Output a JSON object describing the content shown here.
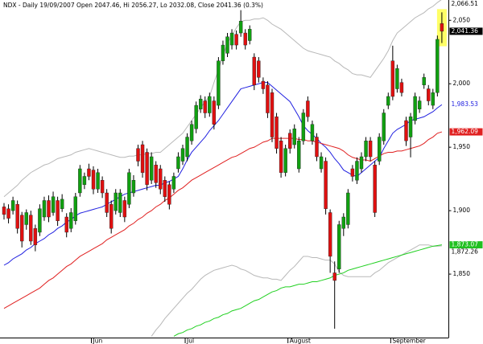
{
  "chart_data": {
    "type": "candlestick",
    "title": "NDX - Daily 19/09/2007 Open 2047.46, Hi 2056.27, Lo 2032.08, Close 2041.36 (0.3%)",
    "categories": [
      null,
      null,
      null,
      null,
      null,
      null,
      null,
      null,
      null,
      null,
      null,
      null,
      null,
      null,
      null,
      null,
      null,
      null,
      null,
      null,
      "Jun",
      null,
      null,
      null,
      null,
      null,
      null,
      null,
      null,
      null,
      null,
      null,
      null,
      null,
      null,
      null,
      null,
      null,
      null,
      null,
      null,
      "Jul",
      null,
      null,
      null,
      null,
      null,
      null,
      null,
      null,
      null,
      null,
      null,
      null,
      null,
      null,
      null,
      null,
      null,
      null,
      null,
      null,
      null,
      null,
      "August",
      null,
      null,
      null,
      null,
      null,
      null,
      null,
      null,
      null,
      null,
      null,
      null,
      null,
      null,
      null,
      null,
      null,
      null,
      null,
      null,
      null,
      null,
      "September",
      null,
      null,
      null,
      null,
      null,
      null,
      null,
      null,
      null,
      null,
      null
    ],
    "open": [
      1903,
      1901.5,
      1900,
      1905,
      1896.5,
      1889,
      1896.5,
      1886,
      1883,
      1895,
      1908,
      1898.5,
      1908,
      1901.5,
      1895,
      1886,
      1892,
      1914,
      1920.5,
      1933,
      1932,
      1917,
      1924,
      1914,
      1905,
      1900,
      1898.5,
      1908,
      1905,
      1914,
      1949,
      1952,
      1946,
      1924,
      1936,
      1933,
      1924,
      1920.5,
      1917,
      1933,
      1939,
      1942.5,
      1955,
      1964.5,
      1980,
      1986.5,
      1977,
      1986.5,
      1983,
      2018,
      2024,
      2030.5,
      2039,
      2040,
      2040,
      2034,
      2021,
      2018,
      2002,
      1999,
      1993,
      1974,
      1955,
      1930,
      1961,
      1952,
      1933,
      1955,
      1986.5,
      1955,
      1958,
      1933,
      1939,
      1898.5,
      1851,
      1854,
      1886,
      1889,
      1933,
      1924,
      1933,
      1942.5,
      1955,
      1936,
      1939,
      1955,
      1983,
      2018,
      1996,
      2001,
      1971,
      1958,
      1971,
      1980,
      1999,
      1996,
      1983,
      1993,
      2047.46
    ],
    "high": [
      1906,
      1905,
      1911,
      1908,
      1899,
      1901,
      1900,
      1889,
      1905,
      1911,
      1912,
      1915,
      1911,
      1913,
      1898,
      1902,
      1914,
      1936,
      1930,
      1937,
      1935,
      1933,
      1927,
      1917,
      1908,
      1917,
      1917,
      1911,
      1933,
      1928,
      1952,
      1955,
      1949,
      1946,
      1939,
      1936,
      1927,
      1923,
      1930,
      1946,
      1952,
      1961,
      1971,
      1986,
      1991,
      1990,
      1993,
      1990,
      2021,
      2034,
      2040,
      2043,
      2042,
      2058,
      2043,
      2046,
      2024,
      2021,
      2005,
      2002,
      1996,
      1977,
      1958,
      1952,
      1964,
      1968,
      1958,
      1980,
      1990,
      1971,
      1961,
      1946,
      1942,
      1901,
      1860,
      1892,
      1898,
      1917,
      1936,
      1942,
      1946,
      1958,
      1958,
      1939,
      1961,
      1980,
      1993,
      2030,
      2015,
      2004,
      1974,
      1977,
      1993,
      1990,
      2008,
      1999,
      1996,
      2038,
      2056.27
    ],
    "low": [
      1893,
      1890,
      1897,
      1882,
      1871,
      1885,
      1873,
      1868,
      1880,
      1892,
      1891,
      1896,
      1888,
      1899,
      1879,
      1883,
      1889,
      1911,
      1917,
      1924,
      1913,
      1914,
      1910,
      1895,
      1882,
      1897,
      1895,
      1891,
      1902,
      1911,
      1935,
      1926,
      1916,
      1921,
      1918,
      1913,
      1907,
      1901,
      1914,
      1930,
      1936,
      1939,
      1952,
      1961,
      1977,
      1973,
      1974,
      1964,
      1980,
      2015,
      2021,
      2027,
      2027,
      2037,
      2027,
      2031,
      1995,
      2001,
      1992,
      1973,
      1954,
      1945,
      1926,
      1927,
      1945,
      1949,
      1930,
      1952,
      1970,
      1952,
      1939,
      1930,
      1897,
      1851,
      1807,
      1851,
      1880,
      1886,
      1923,
      1921,
      1930,
      1939,
      1939,
      1895,
      1936,
      1952,
      1980,
      1987,
      1993,
      1990,
      1951,
      1942,
      1968,
      1977,
      1996,
      1983,
      1980,
      1990,
      2032.08
    ],
    "close": [
      1897,
      1894,
      1908,
      1886,
      1876,
      1898.5,
      1876,
      1873,
      1901.5,
      1908,
      1895,
      1911,
      1892,
      1909,
      1883,
      1898.5,
      1911,
      1933,
      1927,
      1927,
      1917,
      1930,
      1914,
      1898.5,
      1886,
      1914,
      1914,
      1895,
      1930,
      1924,
      1939,
      1930,
      1920.5,
      1942.5,
      1922,
      1917,
      1911,
      1905,
      1927,
      1942.5,
      1949,
      1958,
      1968,
      1983,
      1988,
      1977,
      1990,
      1968,
      2018,
      2030.5,
      2037,
      2040,
      2030.5,
      2049.4,
      2030.5,
      2043,
      1999,
      2005,
      1996,
      1977,
      1958,
      1949,
      1930,
      1949,
      1949,
      1964.5,
      1955,
      1977,
      1974,
      1968,
      1942.5,
      1942.5,
      1901.5,
      1864,
      1845,
      1889,
      1895,
      1914,
      1927,
      1939,
      1942.5,
      1955,
      1942.5,
      1898.5,
      1958,
      1977,
      1990,
      1990,
      2012,
      1993,
      1955,
      1974,
      1990,
      1986.5,
      2005,
      1986.5,
      1993,
      2035,
      2041.36
    ],
    "up_color": "#10a010",
    "down_color": "#e01010",
    "indicators": [
      {
        "color": "#b8b8b8",
        "values": [
          1911,
          1914,
          1917,
          1920,
          1924,
          1927,
          1930,
          1932,
          1934,
          1936,
          1937,
          1939,
          1941,
          1942,
          1943,
          1944,
          1946,
          1947,
          1948,
          1949,
          1948,
          1947,
          1946,
          1945,
          1944,
          1943,
          1942,
          1942,
          1943,
          1943,
          1944,
          1944,
          1945,
          1945,
          1946,
          1946,
          1949,
          1952,
          1955,
          1958,
          1961,
          1966,
          1971,
          1976,
          1981,
          1986,
          1990,
          2001,
          2011,
          2022,
          2032,
          2038,
          2044,
          2049,
          2050,
          2050,
          2051,
          2051,
          2052,
          2050,
          2047,
          2045,
          2043,
          2040,
          2037,
          2034,
          2031,
          2028,
          2026,
          2025,
          2024,
          2023,
          2022,
          2021,
          2018,
          2016,
          2013,
          2011,
          2008,
          2007,
          2007,
          2006,
          2005,
          2010,
          2015,
          2020,
          2026,
          2034,
          2040,
          2043,
          2046,
          2049,
          2052,
          2054,
          2056,
          2059,
          2061,
          2064,
          2066.51
        ]
      },
      {
        "color": "#b8b8b8",
        "values": [
          null,
          null,
          null,
          null,
          null,
          null,
          null,
          null,
          null,
          null,
          null,
          null,
          null,
          null,
          null,
          null,
          null,
          null,
          null,
          null,
          null,
          null,
          null,
          null,
          null,
          null,
          null,
          null,
          null,
          null,
          null,
          null,
          null,
          1801,
          1806,
          1810,
          1815,
          1819,
          1823,
          1827,
          1831,
          1835,
          1838,
          1842,
          1846,
          1849,
          1851,
          1853,
          1854,
          1855,
          1856,
          1857,
          1856,
          1854,
          1853,
          1851,
          1849,
          1848,
          1847,
          1847,
          1846,
          1846,
          1845,
          1849,
          1853,
          1856,
          1860,
          1864,
          1864,
          1863,
          1863,
          1862,
          1861,
          1861,
          1858,
          1852,
          1849,
          1848,
          1848,
          1848,
          1848,
          1848,
          1848,
          1851,
          1853,
          1856,
          1859,
          1861,
          1863,
          1865,
          1867,
          1869,
          1871,
          1873,
          1873,
          1873,
          1872,
          1872,
          1872.26
        ]
      },
      {
        "color": "#2020e0",
        "values": [
          1857,
          1859,
          1862,
          1864,
          1866,
          1869,
          1871,
          1874,
          1876,
          1878,
          1881,
          1883,
          1886,
          1888,
          1891,
          1893,
          1896,
          1898,
          1899,
          1900,
          1901,
          1902,
          1903,
          1905,
          1907,
          1909,
          1911,
          1913,
          1914,
          1915,
          1916,
          1917,
          1918,
          1919,
          1920,
          1920,
          1922,
          1923,
          1925,
          1927,
          1933,
          1940,
          1946,
          1950,
          1954,
          1958,
          1963,
          1967,
          1971,
          1976,
          1981,
          1986,
          1991,
          1996,
          1997,
          1998,
          1999,
          2000,
          2001,
          2001,
          1998,
          1995,
          1992,
          1989,
          1986,
          1980,
          1974,
          1967,
          1963,
          1960,
          1957,
          1953,
          1950,
          1946,
          1941,
          1937,
          1932,
          1930,
          1928,
          1927,
          1930,
          1933,
          1936,
          1939,
          1942,
          1949,
          1955,
          1961,
          1964,
          1966,
          1968,
          1971,
          1972,
          1973,
          1974,
          1976,
          1978,
          1981,
          1983.53
        ]
      },
      {
        "color": "#e02020",
        "values": [
          1823,
          1825,
          1827,
          1829,
          1831,
          1833,
          1835,
          1837,
          1839,
          1842,
          1845,
          1847,
          1850,
          1853,
          1856,
          1858,
          1861,
          1864,
          1866,
          1868,
          1870,
          1872,
          1874,
          1877,
          1879,
          1881,
          1883,
          1885,
          1888,
          1890,
          1893,
          1895,
          1898,
          1900,
          1903,
          1905,
          1908,
          1910,
          1913,
          1916,
          1918,
          1921,
          1924,
          1926,
          1928,
          1930,
          1932,
          1934,
          1936,
          1938,
          1940,
          1942,
          1943,
          1945,
          1947,
          1949,
          1950,
          1952,
          1954,
          1955,
          1957,
          1957,
          1957,
          1957,
          1957,
          1957,
          1956,
          1956,
          1955,
          1955,
          1954,
          1953,
          1952,
          1951,
          1950,
          1949,
          1947,
          1944,
          1942,
          1941,
          1940,
          1940,
          1939,
          1941,
          1943,
          1945,
          1946,
          1946,
          1947,
          1947,
          1948,
          1949,
          1950,
          1951,
          1953,
          1956,
          1958,
          1961,
          1962.09
        ]
      },
      {
        "color": "#20d020",
        "values": [
          null,
          null,
          null,
          null,
          null,
          null,
          null,
          null,
          null,
          null,
          null,
          null,
          null,
          null,
          null,
          null,
          null,
          null,
          null,
          null,
          null,
          null,
          null,
          null,
          null,
          null,
          null,
          null,
          null,
          null,
          null,
          null,
          null,
          null,
          null,
          null,
          null,
          null,
          1801,
          1803,
          1804,
          1806,
          1807,
          1809,
          1810,
          1812,
          1813,
          1815,
          1816,
          1818,
          1819,
          1821,
          1822,
          1823,
          1825,
          1827,
          1829,
          1830,
          1832,
          1834,
          1836,
          1837,
          1839,
          1840,
          1840,
          1841,
          1842,
          1842,
          1843,
          1844,
          1844,
          1845,
          1846,
          1847,
          1849,
          1850,
          1851,
          1853,
          1854,
          1855,
          1856,
          1857,
          1858,
          1859,
          1860,
          1861,
          1862,
          1863,
          1864,
          1865,
          1866,
          1867,
          1868,
          1869,
          1870,
          1871,
          1872,
          1872.5,
          1873.07
        ]
      }
    ],
    "price_labels": [
      {
        "value": 2066.51,
        "label": "2,066.51",
        "background": "#ffffff",
        "text_color": "#000000"
      },
      {
        "value": 2041.36,
        "label": "2,041.36",
        "background": "#000000",
        "text_color": "#ffffff"
      },
      {
        "value": 1983.53,
        "label": "1,983.53",
        "background": "#ffffff",
        "text_color": "#2020e0"
      },
      {
        "value": 1962.09,
        "label": "1,962.09",
        "background": "#e02020",
        "text_color": "#ffffff"
      },
      {
        "value": 1873.07,
        "label": "1,873.07",
        "background": "#20c020",
        "text_color": "#ffffff"
      },
      {
        "value": 1872.26,
        "label": "1,872.26",
        "background": "#ffffff",
        "text_color": "#000000"
      }
    ],
    "ylim": [
      1800,
      2066
    ],
    "yticks": [
      {
        "value": 1850,
        "label": "1,850"
      },
      {
        "value": 1900,
        "label": "1,900"
      },
      {
        "value": 1950,
        "label": "1,950"
      },
      {
        "value": 2000,
        "label": "2,000"
      },
      {
        "value": 2050,
        "label": "2,050"
      }
    ],
    "highlight_last": true,
    "highlight_color": "#ffff66"
  }
}
